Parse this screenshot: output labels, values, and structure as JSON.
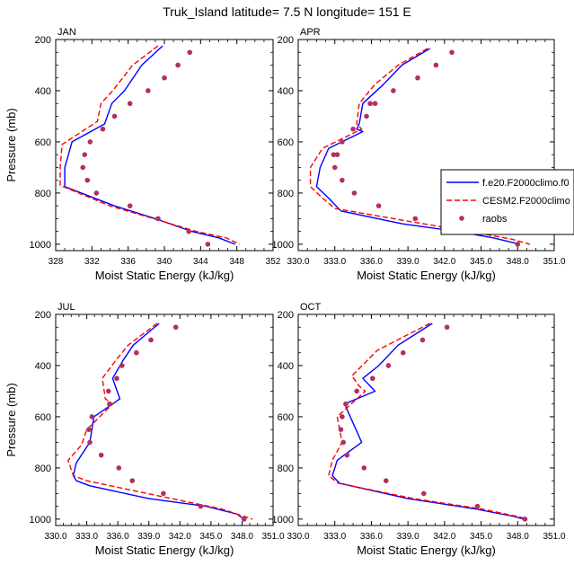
{
  "title": "Truk_Island  latitude= 7.5 N longitude= 151 E",
  "legend": {
    "entries": [
      {
        "label": "f.e20.F2000climo.f0",
        "color": "#0000ff",
        "style": "solid"
      },
      {
        "label": "CESM2.F2000climo",
        "color": "#ff0000",
        "style": "dashed"
      },
      {
        "label": "raobs",
        "color": "#b03060",
        "style": "dots"
      }
    ],
    "placement": "right of APR panel"
  },
  "colors": {
    "model_a": "#0000ff",
    "model_b": "#ff0000",
    "obs": "#b03060"
  },
  "chart_data": [
    {
      "type": "line",
      "panel_label": "JAN",
      "xlabel": "Moist Static Energy (kJ/kg)",
      "ylabel": "Pressure (mb)",
      "xlim": [
        328,
        352
      ],
      "ylim": [
        1025,
        200
      ],
      "xticks": [
        328,
        332,
        336,
        340,
        344,
        348,
        352
      ],
      "xtick_labels": [
        "328",
        "332",
        "336",
        "340",
        "344",
        "348",
        "352"
      ],
      "yticks": [
        200,
        400,
        600,
        800,
        1000
      ],
      "series": [
        {
          "name": "f.e20.F2000climo.f0",
          "x": [
            339.8,
            337.5,
            335.6,
            334.2,
            333.4,
            329.8,
            329.0,
            329.0,
            334.5,
            339.0,
            343.0,
            346.0,
            347.8
          ],
          "y": [
            225,
            300,
            400,
            450,
            530,
            600,
            700,
            775,
            850,
            900,
            950,
            975,
            1000
          ]
        },
        {
          "name": "CESM2.F2000climo",
          "x": [
            339.3,
            336.5,
            334.3,
            333.0,
            332.6,
            328.7,
            328.5,
            328.5,
            334.0,
            338.8,
            343.5,
            346.8,
            348.3
          ],
          "y": [
            225,
            300,
            400,
            450,
            520,
            610,
            700,
            770,
            850,
            900,
            950,
            975,
            1000
          ]
        },
        {
          "name": "raobs",
          "x": [
            342.8,
            341.5,
            340.0,
            338.2,
            336.2,
            334.5,
            333.2,
            331.8,
            331.2,
            331.0,
            331.5,
            332.5,
            336.2,
            339.3,
            342.7,
            344.8
          ],
          "y": [
            250,
            300,
            350,
            400,
            450,
            500,
            550,
            600,
            650,
            700,
            750,
            800,
            850,
            900,
            950,
            1000
          ]
        }
      ]
    },
    {
      "type": "line",
      "panel_label": "APR",
      "xlabel": "Moist Static Energy (kJ/kg)",
      "ylabel": "",
      "xlim": [
        330,
        351
      ],
      "ylim": [
        1025,
        200
      ],
      "xticks": [
        330,
        333,
        336,
        339,
        342,
        345,
        348,
        351
      ],
      "xtick_labels": [
        "330.0",
        "333.0",
        "336.0",
        "339.0",
        "342.0",
        "345.0",
        "348.0",
        "351.0"
      ],
      "yticks": [
        200,
        400,
        600,
        800,
        1000
      ],
      "series": [
        {
          "name": "f.e20.F2000climo.f0",
          "x": [
            340.8,
            338.5,
            337.0,
            335.3,
            335.0,
            334.8,
            335.3,
            332.5,
            331.8,
            331.5,
            332.5,
            333.5,
            338.5,
            343.0,
            346.0,
            348.2
          ],
          "y": [
            235,
            300,
            375,
            450,
            530,
            550,
            560,
            625,
            700,
            775,
            820,
            870,
            920,
            950,
            975,
            1000
          ]
        },
        {
          "name": "CESM2.F2000climo",
          "x": [
            340.6,
            338.2,
            336.3,
            335.0,
            334.8,
            335.2,
            332.0,
            331.0,
            331.0,
            332.0,
            333.0,
            339.0,
            344.0,
            347.5,
            349.0
          ],
          "y": [
            235,
            300,
            375,
            450,
            530,
            550,
            625,
            700,
            775,
            820,
            860,
            910,
            950,
            980,
            1000
          ]
        },
        {
          "name": "raobs",
          "x": [
            342.6,
            341.3,
            339.8,
            337.8,
            336.3,
            335.6,
            335.9,
            334.5,
            333.6,
            333.2,
            332.9,
            333.0,
            333.6,
            334.6,
            336.6,
            339.6,
            344.0,
            348.0
          ],
          "y": [
            250,
            300,
            350,
            400,
            450,
            500,
            450,
            550,
            600,
            650,
            650,
            700,
            750,
            800,
            850,
            900,
            950,
            1000
          ]
        }
      ]
    },
    {
      "type": "line",
      "panel_label": "JUL",
      "xlabel": "Moist Static Energy (kJ/kg)",
      "ylabel": "Pressure (mb)",
      "xlim": [
        330,
        351
      ],
      "ylim": [
        1025,
        200
      ],
      "xticks": [
        330,
        333,
        336,
        339,
        342,
        345,
        348,
        351
      ],
      "xtick_labels": [
        "330.0",
        "333.0",
        "336.0",
        "339.0",
        "342.0",
        "345.0",
        "348.0",
        "351.0"
      ],
      "yticks": [
        200,
        400,
        600,
        800,
        1000
      ],
      "series": [
        {
          "name": "f.e20.F2000climo.f0",
          "x": [
            340.0,
            337.5,
            336.5,
            335.5,
            336.2,
            335.5,
            333.7,
            333.3,
            332.0,
            331.7,
            332.0,
            333.3,
            339.0,
            344.5,
            347.5,
            348.2
          ],
          "y": [
            235,
            320,
            380,
            450,
            530,
            550,
            600,
            700,
            780,
            830,
            850,
            870,
            920,
            950,
            980,
            1000
          ]
        },
        {
          "name": "CESM2.F2000climo",
          "x": [
            339.8,
            337.0,
            335.8,
            334.5,
            334.8,
            335.5,
            333.0,
            332.5,
            331.2,
            331.7,
            333.0,
            340.0,
            346.0,
            349.0
          ],
          "y": [
            235,
            320,
            380,
            450,
            530,
            550,
            650,
            710,
            770,
            830,
            850,
            910,
            960,
            1000
          ]
        },
        {
          "name": "raobs",
          "x": [
            341.6,
            339.2,
            337.8,
            336.4,
            335.1,
            335.9,
            335.2,
            333.5,
            333.2,
            333.3,
            334.4,
            336.1,
            337.4,
            340.4,
            344.0,
            348.2
          ],
          "y": [
            250,
            300,
            350,
            400,
            500,
            450,
            550,
            600,
            650,
            700,
            750,
            800,
            850,
            900,
            950,
            1000
          ]
        }
      ]
    },
    {
      "type": "line",
      "panel_label": "OCT",
      "xlabel": "Moist Static Energy (kJ/kg)",
      "ylabel": "",
      "xlim": [
        330,
        351
      ],
      "ylim": [
        1025,
        200
      ],
      "xticks": [
        330,
        333,
        336,
        339,
        342,
        345,
        348,
        351
      ],
      "xtick_labels": [
        "330.0",
        "333.0",
        "336.0",
        "339.0",
        "342.0",
        "345.0",
        "348.0",
        "351.0"
      ],
      "yticks": [
        200,
        400,
        600,
        800,
        1000
      ],
      "series": [
        {
          "name": "f.e20.F2000climo.f0",
          "x": [
            341.0,
            338.2,
            336.6,
            335.3,
            336.3,
            333.8,
            335.2,
            333.2,
            332.8,
            333.4,
            339.0,
            344.5,
            347.7,
            348.5
          ],
          "y": [
            235,
            320,
            400,
            450,
            500,
            550,
            700,
            770,
            830,
            860,
            920,
            960,
            990,
            1000
          ]
        },
        {
          "name": "CESM2.F2000climo",
          "x": [
            340.8,
            336.5,
            334.4,
            335.0,
            335.5,
            333.2,
            333.6,
            332.8,
            332.5,
            333.3,
            339.5,
            345.0,
            348.0,
            348.8
          ],
          "y": [
            235,
            340,
            440,
            480,
            500,
            600,
            700,
            770,
            830,
            860,
            920,
            960,
            990,
            1000
          ]
        },
        {
          "name": "raobs",
          "x": [
            342.2,
            340.2,
            338.6,
            337.4,
            336.1,
            334.8,
            333.9,
            333.6,
            333.5,
            333.7,
            334.0,
            335.4,
            337.2,
            340.3,
            344.7,
            348.6
          ],
          "y": [
            250,
            300,
            350,
            400,
            450,
            500,
            550,
            600,
            650,
            700,
            750,
            800,
            850,
            900,
            950,
            1000
          ]
        }
      ]
    }
  ]
}
